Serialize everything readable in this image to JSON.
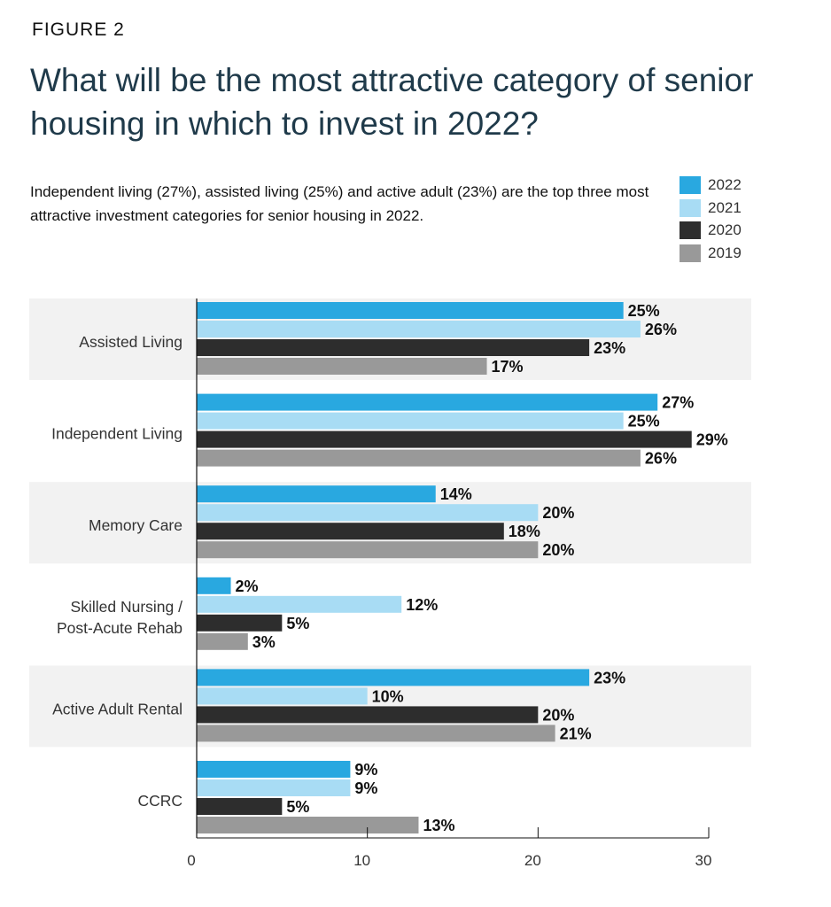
{
  "figure_label": "FIGURE 2",
  "title": "What will be the most attractive category of senior housing in which to invest in 2022?",
  "subtitle": "Independent living (27%), assisted living (25%) and active adult (23%) are the top three most attractive investment categories for senior housing in 2022.",
  "chart_data": {
    "type": "bar",
    "orientation": "horizontal",
    "categories": [
      "Assisted Living",
      "Independent Living",
      "Memory Care",
      "Skilled Nursing / Post-Acute Rehab",
      "Active Adult Rental",
      "CCRC"
    ],
    "series": [
      {
        "name": "2022",
        "color": "#29a8e0",
        "values": [
          25,
          27,
          14,
          2,
          23,
          9
        ]
      },
      {
        "name": "2021",
        "color": "#a8dcf4",
        "values": [
          26,
          25,
          20,
          12,
          10,
          9
        ]
      },
      {
        "name": "2020",
        "color": "#2d2d2d",
        "values": [
          23,
          29,
          18,
          5,
          20,
          5
        ]
      },
      {
        "name": "2019",
        "color": "#999999",
        "values": [
          17,
          26,
          20,
          3,
          21,
          13
        ]
      }
    ],
    "xlim": [
      0,
      30
    ],
    "xticks": [
      0,
      10,
      20,
      30
    ],
    "value_suffix": "%",
    "legend": "top-right",
    "grid": false
  }
}
